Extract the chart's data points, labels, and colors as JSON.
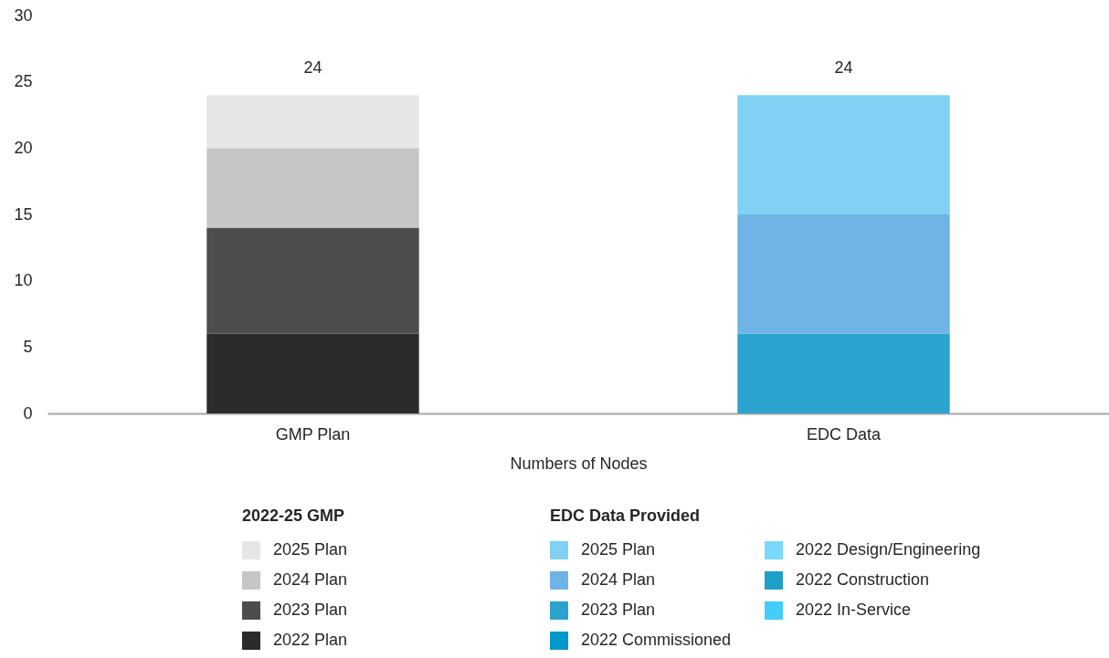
{
  "chart_data": {
    "type": "bar",
    "stacked": true,
    "categories": [
      "GMP Plan",
      "EDC Data"
    ],
    "xlabel": "Numbers of Nodes",
    "legend_title": [
      "2022-25 GMP",
      "EDC Data Provided"
    ],
    "legend": "bottom",
    "ylim": [
      0,
      30
    ],
    "yticks": [
      0,
      5,
      10,
      15,
      20,
      25,
      30
    ],
    "totals": [
      "24",
      "24"
    ],
    "series": [
      {
        "name": "2022 Plan",
        "color": "#2b2b2b",
        "values": [
          6,
          null
        ]
      },
      {
        "name": "2023 Plan",
        "color": "#4d4d4d",
        "values": [
          8,
          null
        ]
      },
      {
        "name": "2024 Plan",
        "color": "#c6c6c6",
        "values": [
          6,
          null
        ]
      },
      {
        "name": "2025 Plan",
        "color": "#e6e6e6",
        "values": [
          4,
          null
        ]
      },
      {
        "name": "2022 In-Service",
        "color": "#44ccfa",
        "values": [
          null,
          null
        ]
      },
      {
        "name": "2022 Construction",
        "color": "#1ea0c8",
        "values": [
          null,
          null
        ]
      },
      {
        "name": "2022 Design/Engineering",
        "color": "#7ad8fa",
        "values": [
          null,
          null
        ]
      },
      {
        "name": "2022 Commissioned",
        "color": "#0097cc",
        "values": [
          null,
          null
        ]
      },
      {
        "name": "2023 Plan",
        "color": "#2aa4cf",
        "values": [
          null,
          6
        ]
      },
      {
        "name": "2024 Plan",
        "color": "#6fb4e6",
        "values": [
          null,
          9
        ]
      },
      {
        "name": "2025 Plan",
        "color": "#80d1f3",
        "values": [
          null,
          9
        ]
      }
    ]
  }
}
